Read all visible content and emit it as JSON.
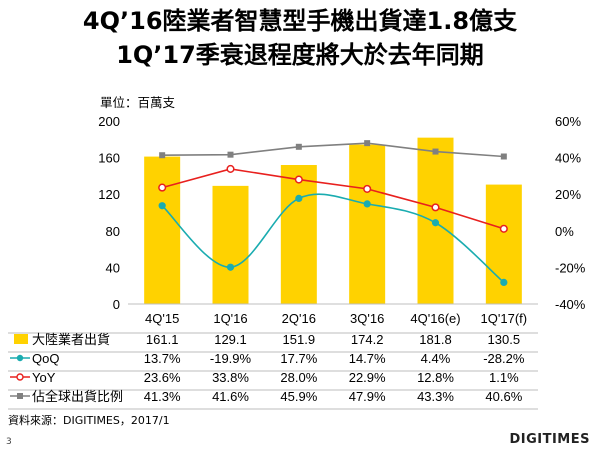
{
  "title_line1": "4Q’16陸業者智慧型手機出貨達1.8億支",
  "title_line2": "1Q’17季衰退程度將大於去年同期",
  "unit_label": "單位：百萬支",
  "source": "資料來源：DIGITIMES，2017/1",
  "page_number": "3",
  "logo_text": "DIGITIMES",
  "colors": {
    "bar": "#FFD200",
    "qoq": "#1AACB0",
    "yoy": "#E8201E",
    "share": "#808080"
  },
  "chart_data": {
    "type": "bar",
    "categories": [
      "4Q'15",
      "1Q'16",
      "2Q'16",
      "3Q'16",
      "4Q'16(e)",
      "1Q'17(f)"
    ],
    "ylim": [
      0,
      200
    ],
    "y_ticks": [
      "0",
      "40",
      "80",
      "120",
      "160",
      "200"
    ],
    "y2lim": [
      -0.4,
      0.6
    ],
    "y2_ticks": [
      "-40%",
      "-20%",
      "0%",
      "20%",
      "40%",
      "60%"
    ],
    "series": [
      {
        "name": "大陸業者出貨",
        "type": "bar",
        "axis": "left",
        "color": "#FFD200",
        "values": [
          161.1,
          129.1,
          151.9,
          174.2,
          181.8,
          130.5
        ],
        "labels": [
          "161.1",
          "129.1",
          "151.9",
          "174.2",
          "181.8",
          "130.5"
        ]
      },
      {
        "name": "QoQ",
        "type": "line",
        "smooth": true,
        "axis": "right",
        "color": "#1AACB0",
        "values": [
          0.137,
          -0.199,
          0.177,
          0.147,
          0.044,
          -0.282
        ],
        "labels": [
          "13.7%",
          "-19.9%",
          "17.7%",
          "14.7%",
          "4.4%",
          "-28.2%"
        ]
      },
      {
        "name": "YoY",
        "type": "line",
        "axis": "right",
        "color": "#E8201E",
        "values": [
          0.236,
          0.338,
          0.28,
          0.229,
          0.128,
          0.011
        ],
        "labels": [
          "23.6%",
          "33.8%",
          "28.0%",
          "22.9%",
          "12.8%",
          "1.1%"
        ]
      },
      {
        "name": "佔全球出貨比例",
        "type": "line",
        "axis": "right",
        "color": "#808080",
        "values": [
          0.413,
          0.416,
          0.459,
          0.479,
          0.433,
          0.406
        ],
        "labels": [
          "41.3%",
          "41.6%",
          "45.9%",
          "47.9%",
          "43.3%",
          "40.6%"
        ]
      }
    ]
  }
}
